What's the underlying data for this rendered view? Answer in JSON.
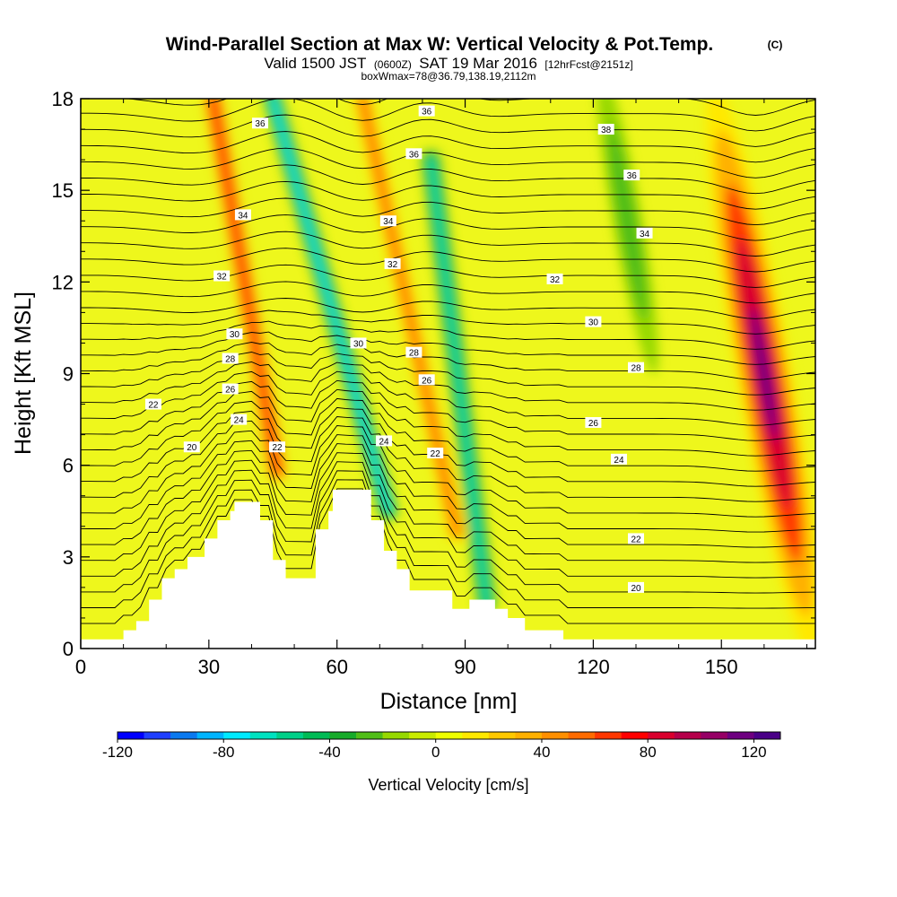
{
  "header": {
    "title": "Wind-Parallel Section at Max W: Vertical Velocity & Pot.Temp.",
    "title_mark": "(C)",
    "valid_prefix": "Valid 1500 JST",
    "valid_z": "(0600Z)",
    "valid_date": "SAT 19 Mar 2016",
    "valid_fcst": "[12hrFcst@2151z]",
    "boxline": "boxWmax=78@36.79,138.19,2112m"
  },
  "chart_data": {
    "type": "heatmap",
    "xlabel": "Distance [nm]",
    "ylabel": "Height [Kft MSL]",
    "xlim": [
      0,
      172
    ],
    "ylim": [
      0,
      18
    ],
    "x_ticks": [
      0,
      30,
      60,
      90,
      120,
      150
    ],
    "y_ticks": [
      0,
      3,
      6,
      9,
      12,
      15,
      18
    ],
    "colorbar": {
      "label": "Vertical Velocity [cm/s]",
      "range": [
        -120,
        130
      ],
      "step": 10,
      "tick_values": [
        -120,
        -80,
        -40,
        0,
        40,
        80,
        120
      ],
      "colors": [
        "#0000ff",
        "#1f3fff",
        "#0a79ef",
        "#00b4ff",
        "#00eaff",
        "#00e2c0",
        "#00d088",
        "#00bb55",
        "#17ab2a",
        "#50be17",
        "#96d800",
        "#c9eb00",
        "#eeff00",
        "#ffe800",
        "#ffc800",
        "#ffb000",
        "#ff8f00",
        "#ff6b00",
        "#ff3700",
        "#ff0000",
        "#d9002d",
        "#b5004a",
        "#960065",
        "#6e0080",
        "#4a0087"
      ]
    },
    "features": [
      {
        "kind": "updraft-ridge",
        "x_top": 31,
        "y_top": 18,
        "x_bottom": 46,
        "y_bottom": 5.8,
        "w_max": 75
      },
      {
        "kind": "downdraft-band",
        "x_top": 45,
        "y_top": 18,
        "x_bottom": 72,
        "y_bottom": 4.5,
        "w_min": -75
      },
      {
        "kind": "updraft-band",
        "x_top": 66,
        "y_top": 18,
        "x_bottom": 88,
        "y_bottom": 3.8,
        "w_max": 55
      },
      {
        "kind": "downdraft-band",
        "x_top": 82,
        "y_top": 16,
        "x_bottom": 95,
        "y_bottom": 1.5,
        "w_min": -70
      },
      {
        "kind": "updraft-core",
        "x": 160,
        "y": 9,
        "w_max": 110
      },
      {
        "kind": "weak-downdraft",
        "x": 128,
        "y": 14,
        "w_min": -30
      }
    ],
    "theta_contours": [
      {
        "value": "20",
        "x": 26,
        "y": 6.6
      },
      {
        "value": "22",
        "x": 17,
        "y": 8.0
      },
      {
        "value": "32",
        "x": 33,
        "y": 12.2
      },
      {
        "value": "34",
        "x": 38,
        "y": 14.2
      },
      {
        "value": "36",
        "x": 42,
        "y": 17.2
      },
      {
        "value": "30",
        "x": 36,
        "y": 10.3
      },
      {
        "value": "28",
        "x": 35,
        "y": 9.5
      },
      {
        "value": "26",
        "x": 35,
        "y": 8.5
      },
      {
        "value": "24",
        "x": 37,
        "y": 7.5
      },
      {
        "value": "22",
        "x": 46,
        "y": 6.6
      },
      {
        "value": "36",
        "x": 81,
        "y": 17.6
      },
      {
        "value": "36",
        "x": 78,
        "y": 16.2
      },
      {
        "value": "34",
        "x": 72,
        "y": 14.0
      },
      {
        "value": "32",
        "x": 73,
        "y": 12.6
      },
      {
        "value": "30",
        "x": 65,
        "y": 10.0
      },
      {
        "value": "28",
        "x": 78,
        "y": 9.7
      },
      {
        "value": "26",
        "x": 81,
        "y": 8.8
      },
      {
        "value": "24",
        "x": 71,
        "y": 6.8
      },
      {
        "value": "22",
        "x": 83,
        "y": 6.4
      },
      {
        "value": "38",
        "x": 123,
        "y": 17.0
      },
      {
        "value": "36",
        "x": 129,
        "y": 15.5
      },
      {
        "value": "34",
        "x": 132,
        "y": 13.6
      },
      {
        "value": "32",
        "x": 111,
        "y": 12.1
      },
      {
        "value": "30",
        "x": 120,
        "y": 10.7
      },
      {
        "value": "28",
        "x": 130,
        "y": 9.2
      },
      {
        "value": "26",
        "x": 120,
        "y": 7.4
      },
      {
        "value": "24",
        "x": 126,
        "y": 6.2
      },
      {
        "value": "22",
        "x": 130,
        "y": 3.6
      },
      {
        "value": "20",
        "x": 130,
        "y": 2.0
      }
    ],
    "terrain": [
      [
        0,
        0.3
      ],
      [
        10,
        0.3
      ],
      [
        10,
        0.6
      ],
      [
        13,
        0.6
      ],
      [
        13,
        0.9
      ],
      [
        16,
        0.9
      ],
      [
        16,
        1.6
      ],
      [
        19,
        1.6
      ],
      [
        19,
        2.3
      ],
      [
        22,
        2.3
      ],
      [
        22,
        2.6
      ],
      [
        25,
        2.6
      ],
      [
        25,
        3.0
      ],
      [
        29,
        3.0
      ],
      [
        29,
        3.6
      ],
      [
        32,
        3.6
      ],
      [
        32,
        4.2
      ],
      [
        35,
        4.2
      ],
      [
        35,
        4.5
      ],
      [
        36,
        4.5
      ],
      [
        36,
        4.8
      ],
      [
        42,
        4.8
      ],
      [
        42,
        4.2
      ],
      [
        45,
        4.2
      ],
      [
        45,
        2.9
      ],
      [
        48,
        2.9
      ],
      [
        48,
        2.3
      ],
      [
        55,
        2.3
      ],
      [
        55,
        3.9
      ],
      [
        58,
        3.9
      ],
      [
        58,
        4.5
      ],
      [
        59,
        4.5
      ],
      [
        59,
        5.2
      ],
      [
        68,
        5.2
      ],
      [
        68,
        4.2
      ],
      [
        71,
        4.2
      ],
      [
        71,
        3.2
      ],
      [
        74,
        3.2
      ],
      [
        74,
        2.6
      ],
      [
        77,
        2.6
      ],
      [
        77,
        1.9
      ],
      [
        87,
        1.9
      ],
      [
        87,
        1.3
      ],
      [
        91,
        1.3
      ],
      [
        91,
        1.6
      ],
      [
        97,
        1.6
      ],
      [
        97,
        1.3
      ],
      [
        100,
        1.3
      ],
      [
        100,
        1.0
      ],
      [
        104,
        1.0
      ],
      [
        104,
        0.6
      ],
      [
        113,
        0.6
      ],
      [
        113,
        0.3
      ],
      [
        172,
        0.3
      ]
    ]
  }
}
